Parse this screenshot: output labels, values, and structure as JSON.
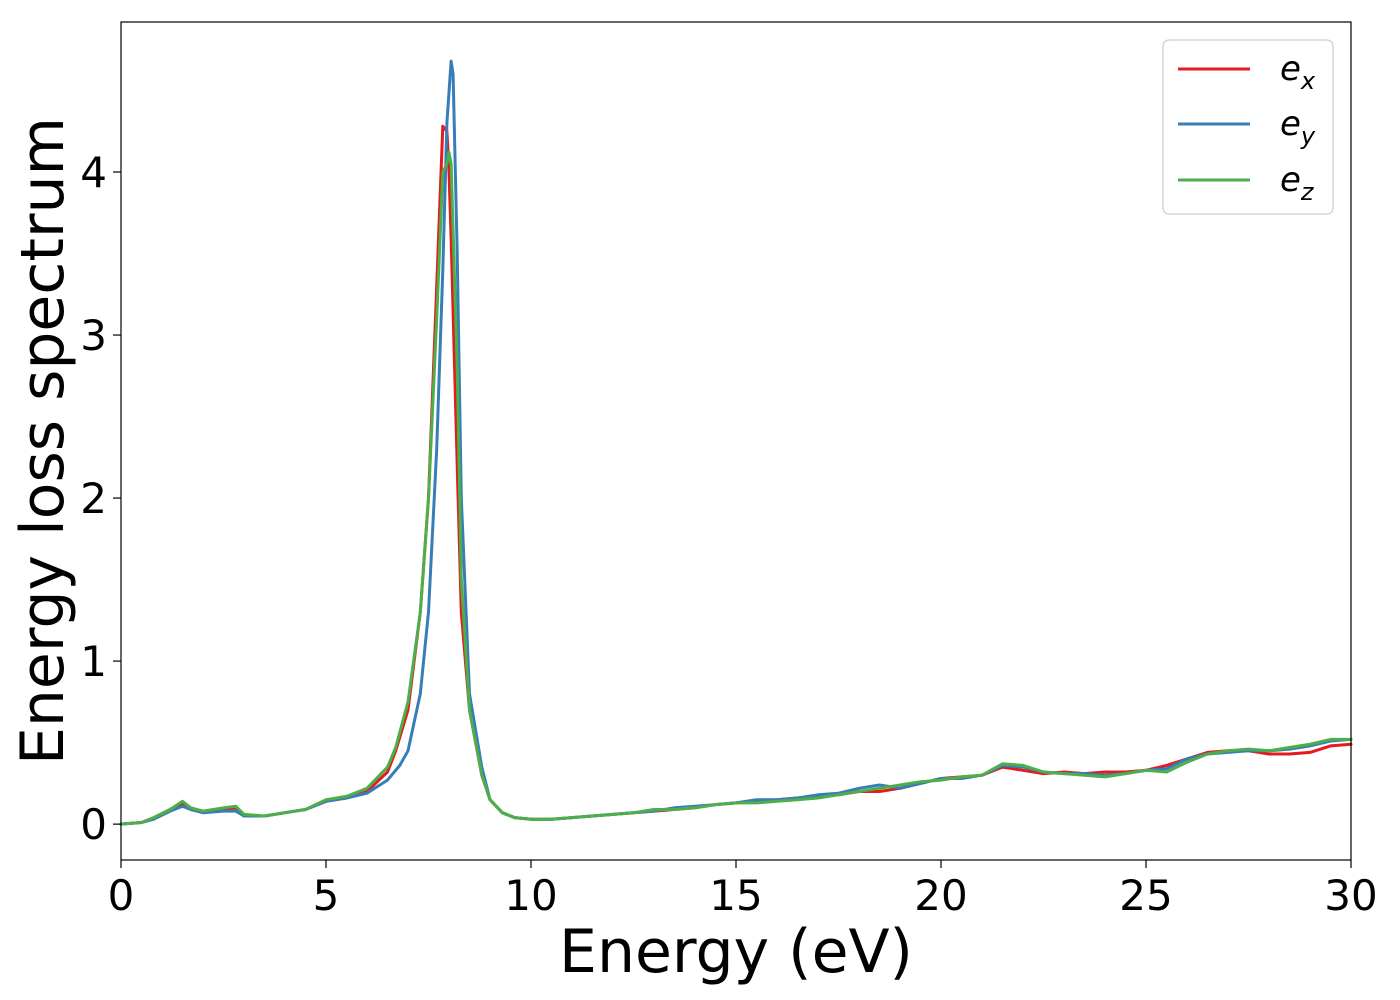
{
  "chart_data": {
    "type": "line",
    "title": "",
    "xlabel": "Energy (eV)",
    "ylabel": "Energy loss spectrum",
    "xlim": [
      0,
      30
    ],
    "ylim": [
      -0.22,
      4.92
    ],
    "xticks": [
      0,
      5,
      10,
      15,
      20,
      25,
      30
    ],
    "xtick_labels": [
      "0",
      "5",
      "10",
      "15",
      "20",
      "25",
      "30"
    ],
    "yticks": [
      0,
      1,
      2,
      3,
      4
    ],
    "ytick_labels": [
      "0",
      "1",
      "2",
      "3",
      "4"
    ],
    "grid": false,
    "legend_position": "top-right",
    "series": [
      {
        "name": "e_x",
        "label_base": "e",
        "label_sub": "x",
        "color": "#e41a1c",
        "x": [
          0,
          0.5,
          0.8,
          1.2,
          1.5,
          1.7,
          2.0,
          2.5,
          2.8,
          3.0,
          3.5,
          4.0,
          4.5,
          5.0,
          5.5,
          6.0,
          6.5,
          6.7,
          7.0,
          7.3,
          7.5,
          7.7,
          7.85,
          7.95,
          8.0,
          8.05,
          8.2,
          8.3,
          8.5,
          8.8,
          9.0,
          9.3,
          9.6,
          10,
          10.5,
          11,
          11.5,
          12,
          12.5,
          13,
          13.5,
          14,
          14.5,
          15,
          15.5,
          16,
          16.5,
          17,
          17.5,
          18,
          18.5,
          19,
          19.5,
          20,
          20.5,
          21,
          21.5,
          22,
          22.5,
          23,
          23.5,
          24,
          24.5,
          25,
          25.5,
          26,
          26.5,
          27,
          27.5,
          28,
          28.5,
          29,
          29.5,
          30
        ],
        "y": [
          0,
          0.01,
          0.04,
          0.09,
          0.13,
          0.1,
          0.07,
          0.09,
          0.1,
          0.05,
          0.05,
          0.07,
          0.09,
          0.14,
          0.16,
          0.2,
          0.32,
          0.45,
          0.7,
          1.3,
          2.0,
          3.3,
          4.28,
          4.25,
          4.0,
          3.6,
          2.2,
          1.3,
          0.7,
          0.3,
          0.15,
          0.07,
          0.04,
          0.03,
          0.03,
          0.04,
          0.05,
          0.06,
          0.07,
          0.08,
          0.09,
          0.1,
          0.12,
          0.13,
          0.14,
          0.15,
          0.16,
          0.17,
          0.18,
          0.2,
          0.2,
          0.22,
          0.25,
          0.28,
          0.29,
          0.3,
          0.35,
          0.33,
          0.31,
          0.32,
          0.31,
          0.32,
          0.32,
          0.33,
          0.36,
          0.4,
          0.44,
          0.45,
          0.45,
          0.43,
          0.43,
          0.44,
          0.48,
          0.49
        ]
      },
      {
        "name": "e_y",
        "label_base": "e",
        "label_sub": "y",
        "color": "#377eb8",
        "x": [
          0,
          0.5,
          0.8,
          1.2,
          1.5,
          1.7,
          2.0,
          2.5,
          2.8,
          3.0,
          3.5,
          4.0,
          4.5,
          5.0,
          5.5,
          6.0,
          6.5,
          6.8,
          7.0,
          7.3,
          7.5,
          7.7,
          7.85,
          7.95,
          8.05,
          8.1,
          8.2,
          8.3,
          8.5,
          8.8,
          9.0,
          9.3,
          9.6,
          10,
          10.5,
          11,
          11.5,
          12,
          12.5,
          13,
          13.5,
          14,
          14.5,
          15,
          15.5,
          16,
          16.5,
          17,
          17.5,
          18,
          18.5,
          19,
          19.5,
          20,
          20.5,
          21,
          21.5,
          22,
          22.5,
          23,
          23.5,
          24,
          24.5,
          25,
          25.5,
          26,
          26.5,
          27,
          27.5,
          28,
          28.5,
          29,
          29.5,
          30
        ],
        "y": [
          0,
          0.01,
          0.03,
          0.08,
          0.11,
          0.09,
          0.07,
          0.08,
          0.08,
          0.05,
          0.05,
          0.07,
          0.09,
          0.14,
          0.16,
          0.19,
          0.27,
          0.36,
          0.45,
          0.8,
          1.3,
          2.3,
          3.4,
          4.3,
          4.68,
          4.6,
          3.5,
          2.0,
          0.8,
          0.35,
          0.15,
          0.07,
          0.04,
          0.03,
          0.03,
          0.04,
          0.05,
          0.06,
          0.07,
          0.08,
          0.1,
          0.11,
          0.12,
          0.13,
          0.15,
          0.15,
          0.16,
          0.18,
          0.19,
          0.22,
          0.24,
          0.22,
          0.25,
          0.28,
          0.28,
          0.3,
          0.36,
          0.35,
          0.32,
          0.31,
          0.31,
          0.3,
          0.31,
          0.33,
          0.34,
          0.4,
          0.43,
          0.44,
          0.45,
          0.45,
          0.46,
          0.48,
          0.51,
          0.52
        ]
      },
      {
        "name": "e_z",
        "label_base": "e",
        "label_sub": "z",
        "color": "#4daf4a",
        "x": [
          0,
          0.5,
          0.8,
          1.2,
          1.5,
          1.7,
          2.0,
          2.5,
          2.8,
          3.0,
          3.5,
          4.0,
          4.5,
          5.0,
          5.5,
          6.0,
          6.5,
          6.7,
          7.0,
          7.3,
          7.5,
          7.7,
          7.85,
          7.95,
          8.0,
          8.05,
          8.2,
          8.3,
          8.5,
          8.8,
          9.0,
          9.3,
          9.6,
          10,
          10.5,
          11,
          11.5,
          12,
          12.5,
          13,
          13.5,
          14,
          14.5,
          15,
          15.5,
          16,
          16.5,
          17,
          17.5,
          18,
          18.5,
          19,
          19.5,
          20,
          20.5,
          21,
          21.5,
          22,
          22.5,
          23,
          23.5,
          24,
          24.5,
          25,
          25.5,
          26,
          26.5,
          27,
          27.5,
          28,
          28.5,
          29,
          29.5,
          30
        ],
        "y": [
          0,
          0.01,
          0.04,
          0.09,
          0.14,
          0.1,
          0.08,
          0.1,
          0.11,
          0.06,
          0.05,
          0.07,
          0.09,
          0.15,
          0.17,
          0.22,
          0.35,
          0.47,
          0.75,
          1.3,
          2.0,
          3.1,
          4.0,
          4.05,
          4.12,
          4.05,
          2.8,
          1.5,
          0.7,
          0.3,
          0.15,
          0.07,
          0.04,
          0.03,
          0.03,
          0.04,
          0.05,
          0.06,
          0.07,
          0.09,
          0.09,
          0.1,
          0.12,
          0.13,
          0.13,
          0.14,
          0.15,
          0.16,
          0.18,
          0.2,
          0.22,
          0.24,
          0.26,
          0.27,
          0.29,
          0.3,
          0.37,
          0.36,
          0.32,
          0.31,
          0.3,
          0.29,
          0.31,
          0.33,
          0.32,
          0.38,
          0.43,
          0.45,
          0.46,
          0.45,
          0.47,
          0.49,
          0.52,
          0.52
        ]
      }
    ]
  }
}
